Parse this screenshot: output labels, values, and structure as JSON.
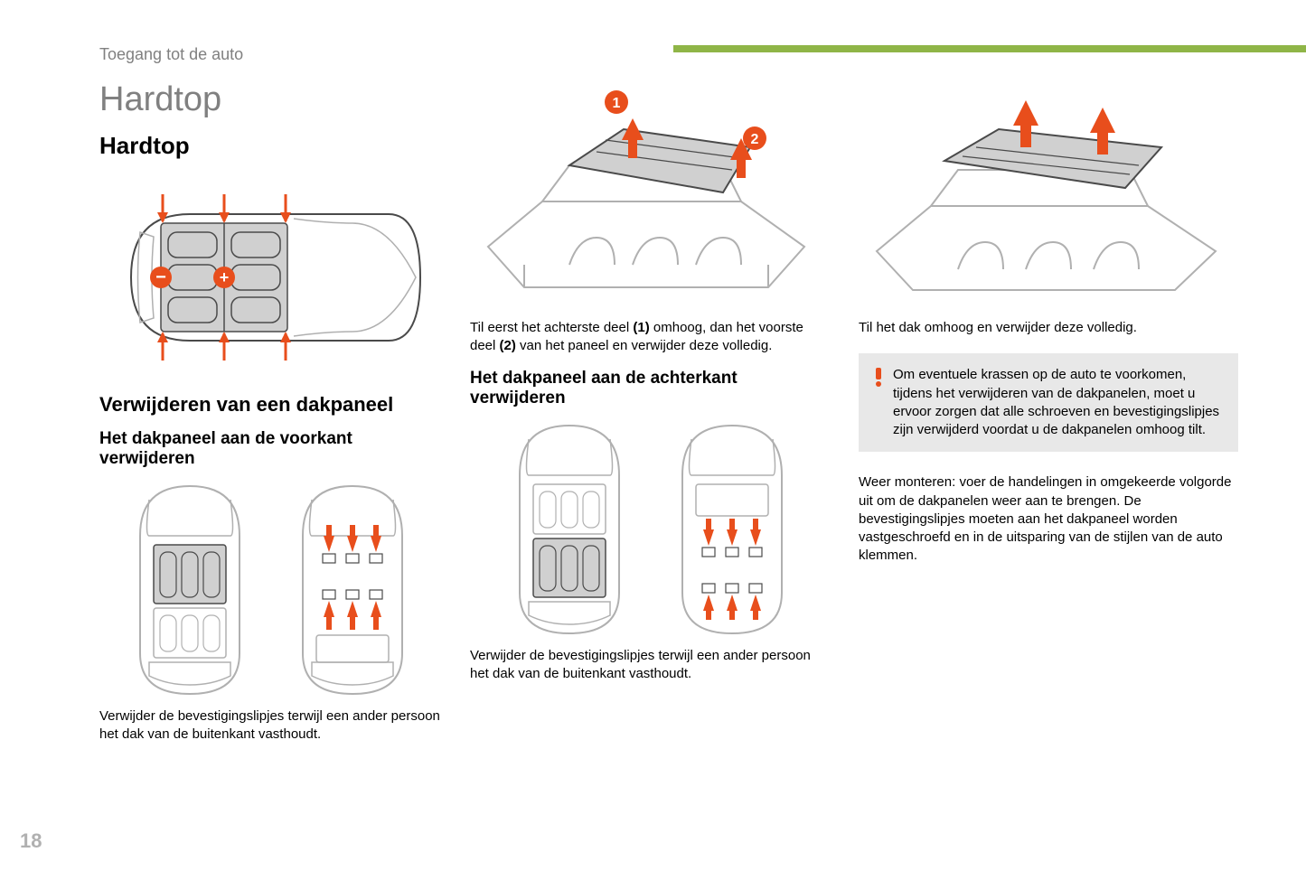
{
  "breadcrumb": "Toegang tot de auto",
  "page_title": "Hardtop",
  "section_title": "Hardtop",
  "page_number": "18",
  "accent_color": "#8fb547",
  "arrow_color": "#e84e1c",
  "bubble_color": "#e84e1c",
  "panel_fill": "#d0d0d0",
  "line_color": "#4a4a4a",
  "warning_bg": "#e8e8e8",
  "col1": {
    "subsection": "Verwijderen van een dakpaneel",
    "subsub": "Het dakpaneel aan de voorkant verwijderen",
    "caption": "Verwijder de bevestigingslipjes terwijl een ander persoon het dak van de buitenkant vasthoudt."
  },
  "col2": {
    "caption_top_html": "Til eerst het achterste deel <b>(1)</b> omhoog, dan het voorste deel <b>(2)</b> van het paneel en verwijder deze volledig.",
    "subsub": "Het dakpaneel aan de achterkant verwijderen",
    "caption_bottom": "Verwijder de bevestigingslipjes terwijl een ander persoon het dak van de buitenkant vasthoudt."
  },
  "col3": {
    "caption_top": "Til het dak omhoog en verwijder deze volledig.",
    "warning": "Om eventuele krassen op de auto te voorkomen, tijdens het verwijderen van de dakpanelen, moet u ervoor zorgen dat alle schroeven en bevestigingslipjes zijn verwijderd voordat u de dakpanelen omhoog tilt.",
    "reassembly": "Weer monteren: voer de handelingen in omgekeerde volgorde uit om de dakpanelen weer aan te brengen. De bevestigingslipjes moeten aan het dakpaneel worden vastgeschroefd en in de uitsparing van de stijlen van de auto klemmen."
  },
  "diagrams": {
    "top_plan": {
      "minus_label": "−",
      "plus_label": "+"
    },
    "iso_numbered": {
      "labels": [
        "1",
        "2"
      ]
    }
  }
}
